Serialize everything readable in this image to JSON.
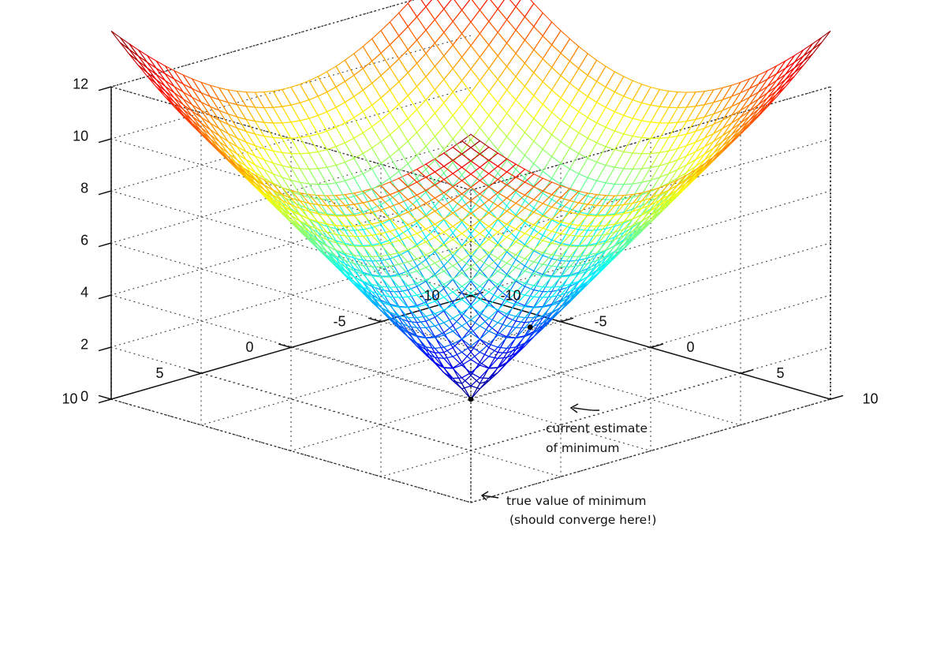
{
  "chart_data": {
    "type": "surface",
    "function": "z = sqrt(x^2 + y^2)",
    "x_range": [
      -10,
      10
    ],
    "y_range": [
      -10,
      10
    ],
    "z_range": [
      0,
      12
    ],
    "x_ticks": [
      "-10",
      "-5",
      "0",
      "5",
      "10"
    ],
    "y_ticks": [
      "-10",
      "-5",
      "0",
      "5",
      "10"
    ],
    "z_ticks": [
      "0",
      "2",
      "4",
      "6",
      "8",
      "10",
      "12"
    ],
    "grid": true,
    "colormap": "jet",
    "mesh_resolution": 41,
    "points": [
      {
        "name": "current_estimate",
        "x": 3.5,
        "y": 0.2,
        "z": 3.5
      },
      {
        "name": "true_minimum",
        "x": 0,
        "y": 0,
        "z": 0
      }
    ],
    "annotations": {
      "current_estimate_line1": "current estimate",
      "current_estimate_line2": "of minimum",
      "true_min_line1": "true value of minimum",
      "true_min_line2": "(should converge here!)"
    }
  }
}
